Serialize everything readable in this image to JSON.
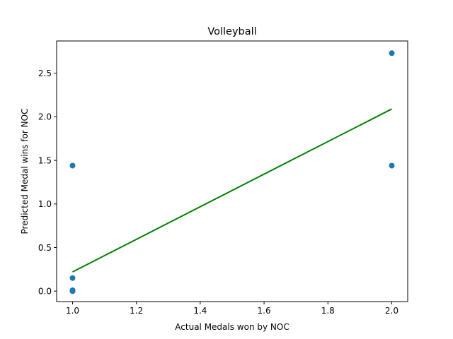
{
  "chart_data": {
    "type": "scatter",
    "title": "Volleyball",
    "xlabel": "Actual Medals won by NOC",
    "ylabel": "Predicted Medal wins for NOC",
    "xlim": [
      0.95,
      2.05
    ],
    "ylim": [
      -0.12,
      2.87
    ],
    "xticks": [
      1.0,
      1.2,
      1.4,
      1.6,
      1.8,
      2.0
    ],
    "xtick_labels": [
      "1.0",
      "1.2",
      "1.4",
      "1.6",
      "1.8",
      "2.0"
    ],
    "yticks": [
      0.0,
      0.5,
      1.0,
      1.5,
      2.0,
      2.5
    ],
    "ytick_labels": [
      "0.0",
      "0.5",
      "1.0",
      "1.5",
      "2.0",
      "2.5"
    ],
    "grid": false,
    "series": [
      {
        "kind": "points",
        "color": "#1f77b4",
        "x": [
          1.0,
          1.0,
          1.0,
          1.0,
          1.0,
          2.0,
          2.0
        ],
        "y": [
          1.44,
          0.15,
          0.01,
          0.0,
          0.0,
          2.73,
          1.44
        ]
      },
      {
        "kind": "line",
        "color": "#008000",
        "x": [
          1.0,
          2.0
        ],
        "y": [
          0.22,
          2.09
        ]
      }
    ]
  }
}
